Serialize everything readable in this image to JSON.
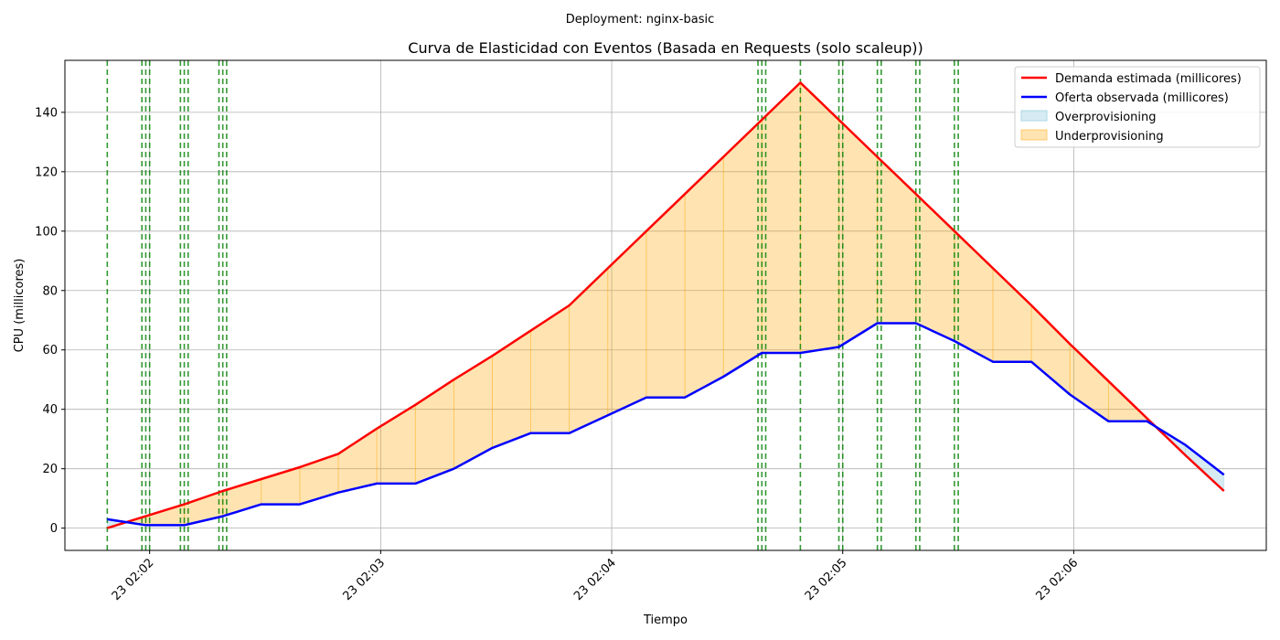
{
  "suptitle": "Deployment: nginx-basic",
  "chart_data": {
    "type": "line",
    "title": "Curva de Elasticidad con Eventos (Basada en Requests (solo scaleup))",
    "xlabel": "Tiempo",
    "ylabel": "CPU (millicores)",
    "x_ticks": [
      "23 02:02",
      "23 02:03",
      "23 02:04",
      "23 02:05",
      "23 02:06"
    ],
    "y_ticks": [
      "0",
      "20",
      "40",
      "60",
      "80",
      "100",
      "120",
      "140"
    ],
    "ylim": [
      -7.5,
      157.5
    ],
    "grid": true,
    "legend_position": "top-right",
    "x": [
      "02:01:49",
      "02:01:59",
      "02:02:09",
      "02:02:19",
      "02:02:29",
      "02:02:39",
      "02:02:49",
      "02:02:59",
      "02:03:09",
      "02:03:19",
      "02:03:29",
      "02:03:39",
      "02:03:49",
      "02:03:59",
      "02:04:09",
      "02:04:19",
      "02:04:29",
      "02:04:39",
      "02:04:49",
      "02:04:59",
      "02:05:09",
      "02:05:19",
      "02:05:29",
      "02:05:39",
      "02:05:49",
      "02:05:59",
      "02:06:09",
      "02:06:19",
      "02:06:29",
      "02:06:39"
    ],
    "series": [
      {
        "name": "Demanda estimada (millicores)",
        "color": "#ff0000",
        "values": [
          0,
          4,
          8,
          12.5,
          16.5,
          20.5,
          25,
          33.5,
          41.5,
          50,
          58,
          66.5,
          75,
          87.5,
          100,
          112.5,
          125,
          137.5,
          150,
          137.5,
          125,
          112.5,
          100,
          87.5,
          75,
          62,
          49.5,
          37,
          24.5,
          12.5
        ]
      },
      {
        "name": "Oferta observada (millicores)",
        "color": "#0000ff",
        "values": [
          3,
          1,
          1,
          4,
          8,
          8,
          12,
          15,
          15,
          20,
          27,
          32,
          32,
          38,
          44,
          44,
          51,
          59,
          59,
          61,
          69,
          69,
          63,
          56,
          56,
          45,
          36,
          36,
          28,
          18
        ]
      }
    ],
    "fills": [
      {
        "name": "Overprovisioning",
        "color": "#add8e6"
      },
      {
        "name": "Underprovisioning",
        "color": "#ffa500"
      }
    ],
    "event_lines": [
      "02:01:49",
      "02:01:58",
      "02:01:59",
      "02:02:00",
      "02:02:08",
      "02:02:09",
      "02:02:10",
      "02:02:18",
      "02:02:19",
      "02:02:20",
      "02:04:38",
      "02:04:39",
      "02:04:40",
      "02:04:49",
      "02:04:59",
      "02:05:00",
      "02:05:09",
      "02:05:10",
      "02:05:19",
      "02:05:20",
      "02:05:29",
      "02:05:30"
    ],
    "event_color": "#008000"
  }
}
